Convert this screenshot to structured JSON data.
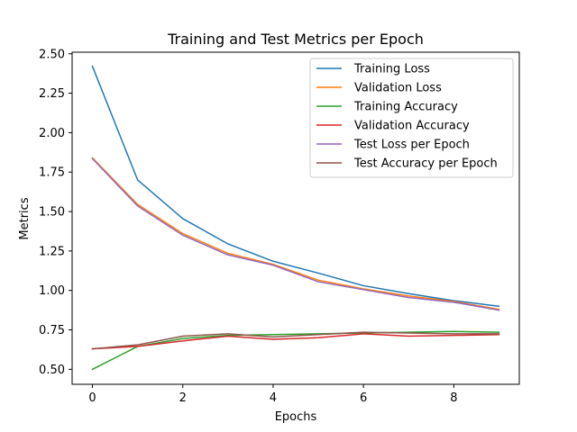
{
  "chart_data": {
    "type": "line",
    "title": "Training and Test Metrics per Epoch",
    "xlabel": "Epochs",
    "ylabel": "Metrics",
    "xlim": [
      -0.45,
      9.45
    ],
    "ylim": [
      0.405,
      2.51
    ],
    "x_ticks": [
      0,
      2,
      4,
      6,
      8
    ],
    "x_tick_labels": [
      "0",
      "2",
      "4",
      "6",
      "8"
    ],
    "y_ticks": [
      0.5,
      0.75,
      1.0,
      1.25,
      1.5,
      1.75,
      2.0,
      2.25,
      2.5
    ],
    "y_tick_labels": [
      "0.50",
      "0.75",
      "1.00",
      "1.25",
      "1.50",
      "1.75",
      "2.00",
      "2.25",
      "2.50"
    ],
    "grid": false,
    "legend_position": "top-right",
    "x": [
      0,
      1,
      2,
      3,
      4,
      5,
      6,
      7,
      8,
      9
    ],
    "series": [
      {
        "name": "Training Loss",
        "color": "#1f77b4",
        "values": [
          2.42,
          1.7,
          1.455,
          1.295,
          1.185,
          1.11,
          1.03,
          0.98,
          0.935,
          0.9
        ]
      },
      {
        "name": "Validation Loss",
        "color": "#ff7f0e",
        "values": [
          1.84,
          1.545,
          1.36,
          1.235,
          1.165,
          1.065,
          1.01,
          0.965,
          0.93,
          0.88
        ]
      },
      {
        "name": "Training Accuracy",
        "color": "#2ca02c",
        "values": [
          0.5,
          0.645,
          0.695,
          0.715,
          0.72,
          0.725,
          0.73,
          0.735,
          0.74,
          0.735
        ]
      },
      {
        "name": "Validation Accuracy",
        "color": "#d62728",
        "values": [
          0.63,
          0.645,
          0.68,
          0.71,
          0.69,
          0.7,
          0.725,
          0.71,
          0.715,
          0.72
        ]
      },
      {
        "name": "Test Loss per Epoch",
        "color": "#9467bd",
        "values": [
          1.835,
          1.535,
          1.35,
          1.225,
          1.16,
          1.055,
          1.005,
          0.955,
          0.925,
          0.875
        ]
      },
      {
        "name": "Test Accuracy per Epoch",
        "color": "#8c564b",
        "values": [
          0.63,
          0.655,
          0.71,
          0.725,
          0.705,
          0.72,
          0.735,
          0.73,
          0.725,
          0.725
        ]
      }
    ]
  }
}
